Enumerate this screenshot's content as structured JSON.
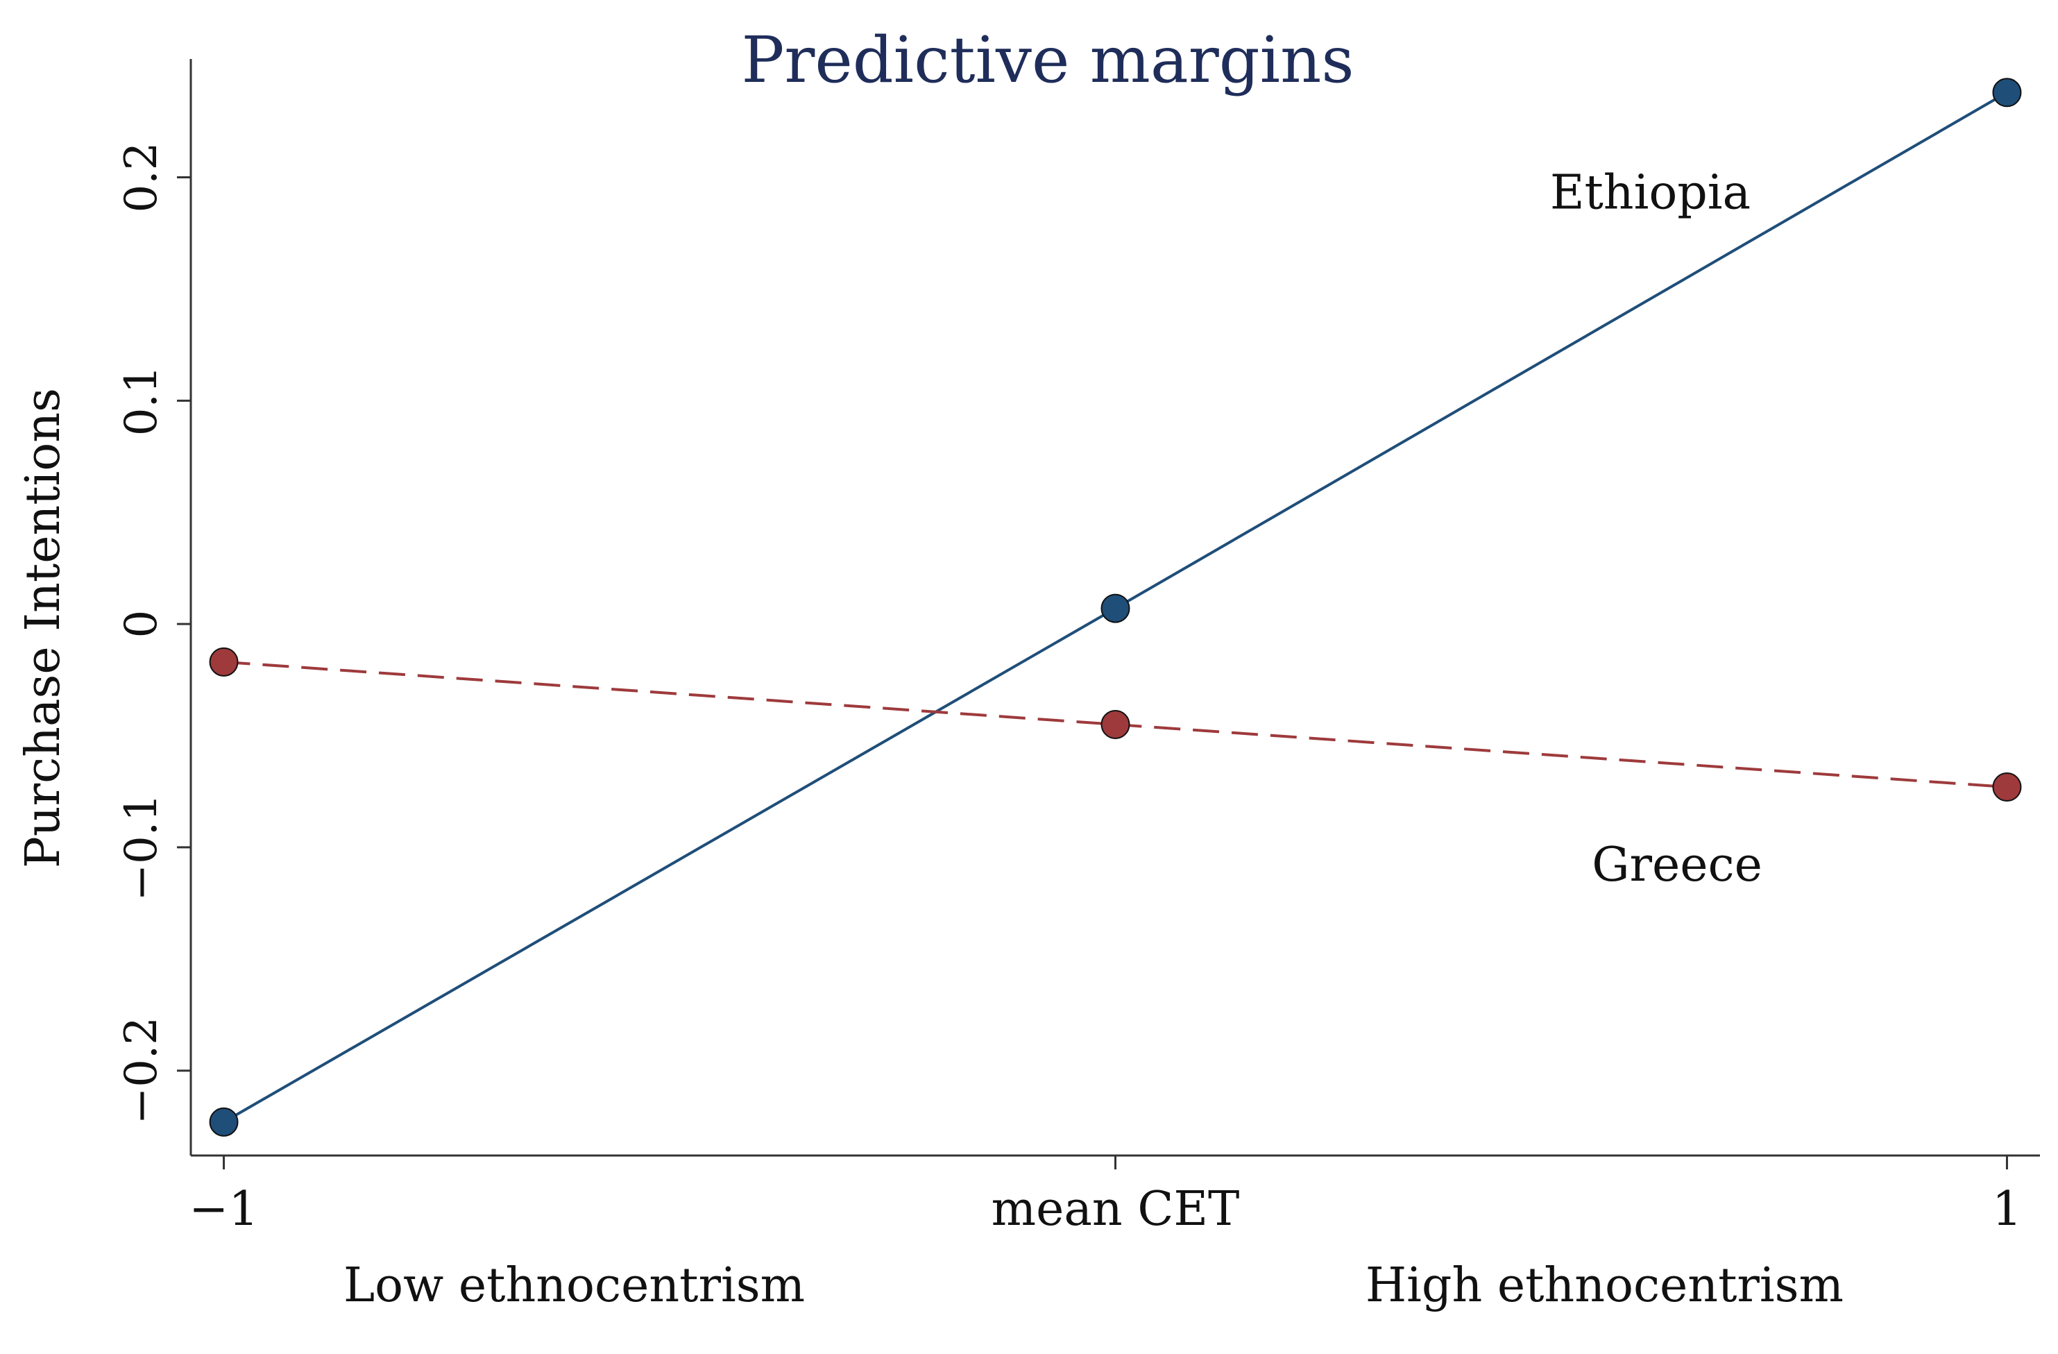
{
  "chart_data": {
    "type": "line",
    "title": "Predictive margins",
    "ylabel": "Purchase Intentions",
    "xlabel": "",
    "x": [
      -1,
      0,
      1
    ],
    "x_tick_labels": [
      "−1",
      "mean CET",
      "1"
    ],
    "x_sublabels": [
      "Low ethnocentrism",
      "High ethnocentrism"
    ],
    "y_ticks": [
      -0.2,
      -0.1,
      0,
      0.1,
      0.2
    ],
    "y_tick_labels": [
      "−0.2",
      "−0.1",
      "0",
      "0.1",
      "0.2"
    ],
    "xlim": [
      -1.037,
      1.037
    ],
    "ylim": [
      -0.238,
      0.253
    ],
    "grid": false,
    "series": [
      {
        "name": "Ethiopia",
        "values": [
          -0.223,
          0.007,
          0.238
        ],
        "color": "#1f4e79",
        "line_style": "solid",
        "marker": "circle",
        "label_at": {
          "x": 0.6,
          "y": 0.186
        }
      },
      {
        "name": "Greece",
        "values": [
          -0.017,
          -0.045,
          -0.073
        ],
        "color": "#9e3a3c",
        "line_style": "dashed",
        "marker": "circle",
        "label_at": {
          "x": 0.63,
          "y": -0.115
        }
      }
    ],
    "title_color": "#1f2d5a",
    "axis_color": "#333333",
    "text_color": "#111111"
  }
}
